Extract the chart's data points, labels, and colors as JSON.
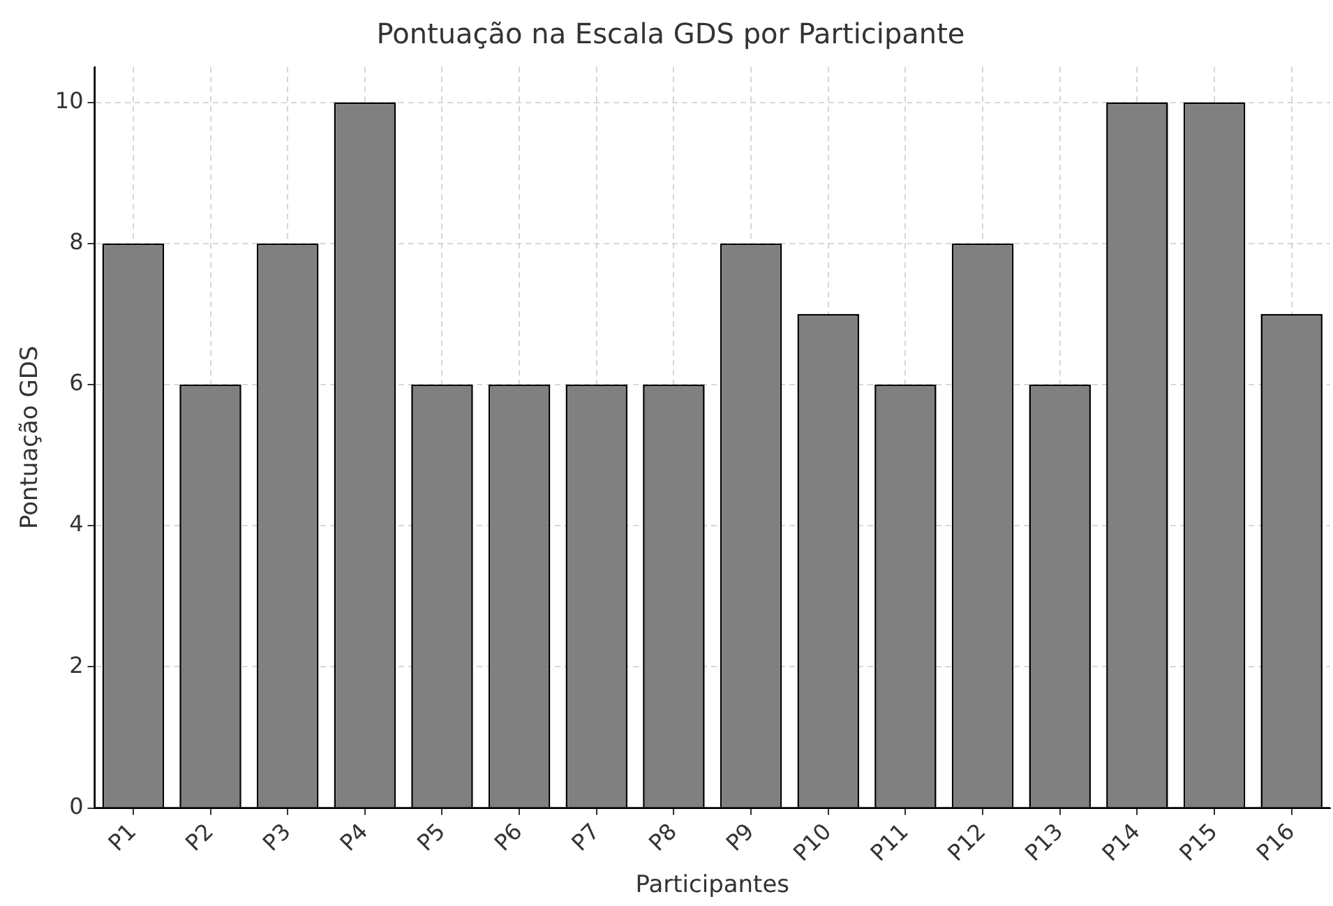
{
  "chart_data": {
    "type": "bar",
    "title": "Pontuação na Escala GDS por Participante",
    "xlabel": "Participantes",
    "ylabel": "Pontuação GDS",
    "categories": [
      "P1",
      "P2",
      "P3",
      "P4",
      "P5",
      "P6",
      "P7",
      "P8",
      "P9",
      "P10",
      "P11",
      "P12",
      "P13",
      "P14",
      "P15",
      "P16"
    ],
    "values": [
      8,
      6,
      8,
      10,
      6,
      6,
      6,
      6,
      8,
      7,
      6,
      8,
      6,
      10,
      10,
      7
    ],
    "color": "#808080",
    "ylim": [
      0,
      10.5
    ],
    "yticks": [
      0,
      2,
      4,
      6,
      8,
      10
    ],
    "grid": true
  }
}
